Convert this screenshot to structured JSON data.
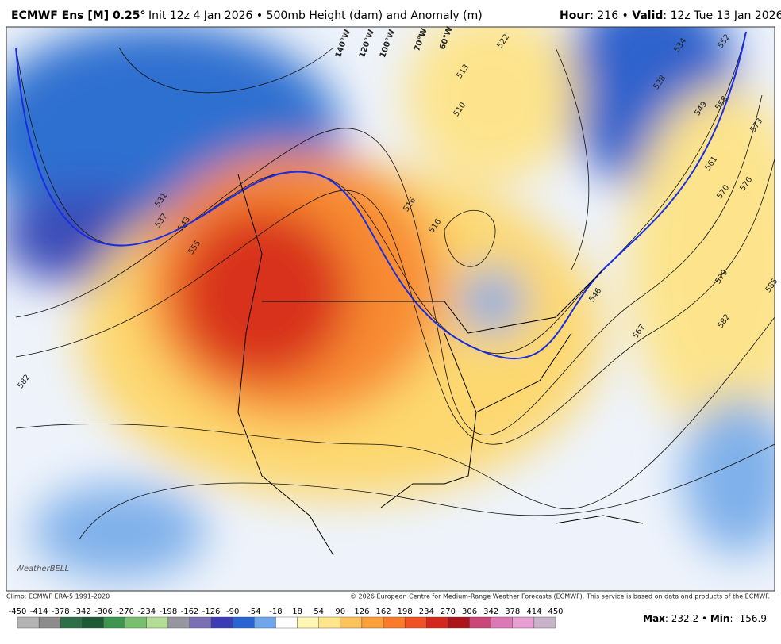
{
  "header": {
    "model": "ECMWF Ens [M] 0.25°",
    "run": "Init 12z 4 Jan 2026 • 500mb Height (dam) and Anomaly (m)",
    "hour_label": "Hour",
    "hour": ": 216 • ",
    "valid_label": "Valid",
    "valid": ": 12z Tue 13 Jan 2026"
  },
  "map": {
    "contour_labels": [
      "531",
      "537",
      "543",
      "555",
      "582",
      "516",
      "516",
      "510",
      "513",
      "522",
      "528",
      "534",
      "552",
      "549",
      "558",
      "561",
      "570",
      "573",
      "576",
      "579",
      "582",
      "585",
      "567",
      "546"
    ],
    "longitude_labels": [
      "140°W",
      "120°W",
      "100°W",
      "70°W",
      "60°W"
    ],
    "brand": "WeatherBELL"
  },
  "footer": {
    "climo": "Climo: ECMWF ERA-5 1991-2020",
    "copyright": "© 2026 European Centre for Medium-Range Weather Forecasts (ECMWF). This service is based on data and products of the ECMWF.",
    "max_label": "Max",
    "max": 232.2,
    "sep": " • ",
    "min_label": "Min",
    "min": -156.9
  },
  "colorbar": {
    "ticks": [
      -450,
      -414,
      -378,
      -342,
      -306,
      -270,
      -234,
      -198,
      -162,
      -126,
      -90,
      -54,
      -18,
      18,
      54,
      90,
      126,
      162,
      198,
      234,
      270,
      306,
      342,
      378,
      414,
      450
    ],
    "colors": [
      "#b4b4b4",
      "#8c8c8c",
      "#2d6e46",
      "#1e5a35",
      "#3c9650",
      "#78be6e",
      "#b4dc96",
      "#9696a0",
      "#7a6fb4",
      "#3c3cb4",
      "#2864d2",
      "#6ea5eb",
      "#ffffff",
      "#fff5b4",
      "#fde68c",
      "#fdc35a",
      "#fca03c",
      "#f97a28",
      "#ef5024",
      "#d2281e",
      "#aa141a",
      "#c84678",
      "#dc78b4",
      "#e6a0d2",
      "#c8b4c8"
    ]
  }
}
